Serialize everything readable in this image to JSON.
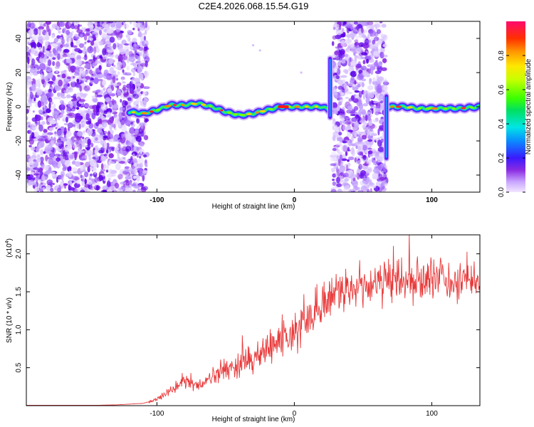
{
  "title": "C2E4.2026.068.15.54.G19",
  "colors": {
    "snr_line": "#e8393a",
    "blob_core": "#8a2be2",
    "blob_light": "#d9c2ff"
  },
  "chart_data": [
    {
      "type": "heatmap",
      "title": "C2E4.2026.068.15.54.G19",
      "xlabel": "Height of straight line (km)",
      "ylabel": "Frequency (Hz)",
      "xlim": [
        -195,
        135
      ],
      "ylim": [
        -50,
        50
      ],
      "xticks": [
        -100,
        0,
        100
      ],
      "xtick_labels": [
        "-100",
        "0",
        "100"
      ],
      "yticks": [
        -40,
        -20,
        0,
        20,
        40
      ],
      "ytick_labels": [
        "-40",
        "-20",
        "0",
        "20",
        "40"
      ],
      "noise_regions": [
        [
          -195,
          -107
        ],
        [
          28,
          67
        ]
      ],
      "signal_track": {
        "x": [
          -120,
          -110,
          -100,
          -90,
          -80,
          -70,
          -60,
          -50,
          -40,
          -30,
          -20,
          -10,
          0,
          10,
          20,
          26,
          68,
          80,
          90,
          100,
          110,
          120,
          135
        ],
        "frequency": [
          -3,
          -4,
          -2,
          1,
          1,
          2,
          0,
          -3,
          -5,
          -4,
          -2,
          0,
          0,
          0,
          0,
          -2,
          0,
          0,
          -1,
          -1,
          -1,
          -1,
          0
        ]
      },
      "spikes": [
        {
          "x": 26,
          "frequency_range": [
            -8,
            30
          ]
        },
        {
          "x": 67,
          "frequency_range": [
            -32,
            8
          ]
        }
      ],
      "colorbar": {
        "label": "Normalized spectral amplitude",
        "range": [
          0.0,
          1.0
        ],
        "ticks": [
          0.0,
          0.2,
          0.4,
          0.6,
          0.8
        ],
        "tick_labels": [
          "0.0",
          "0.2",
          "0.4",
          "0.6",
          "0.8"
        ]
      }
    },
    {
      "type": "line",
      "xlabel": "Height of straight line (km)",
      "ylabel": "SNR (10 * v/v)",
      "scale_label": "(x10",
      "scale_exp": "4",
      "xlim": [
        -195,
        135
      ],
      "ylim": [
        0,
        2.25
      ],
      "xticks": [
        -100,
        0,
        100
      ],
      "xtick_labels": [
        "-100",
        "0",
        "100"
      ],
      "yticks": [
        0.5,
        1.0,
        1.5,
        2.0
      ],
      "ytick_labels": [
        "0.5",
        "1.0",
        "1.5",
        "2.0"
      ],
      "series": [
        {
          "name": "SNR",
          "x": [
            -195,
            -160,
            -130,
            -110,
            -100,
            -95,
            -90,
            -85,
            -80,
            -75,
            -70,
            -65,
            -60,
            -55,
            -50,
            -45,
            -40,
            -35,
            -30,
            -25,
            -20,
            -15,
            -10,
            -5,
            0,
            5,
            10,
            15,
            20,
            25,
            30,
            40,
            50,
            60,
            70,
            80,
            90,
            100,
            110,
            120,
            135
          ],
          "values": [
            0.0,
            0.0,
            0.01,
            0.03,
            0.08,
            0.14,
            0.2,
            0.28,
            0.34,
            0.3,
            0.26,
            0.3,
            0.38,
            0.45,
            0.5,
            0.48,
            0.56,
            0.62,
            0.6,
            0.64,
            0.72,
            0.82,
            0.9,
            0.92,
            0.96,
            1.0,
            1.08,
            1.25,
            1.35,
            1.42,
            1.47,
            1.52,
            1.57,
            1.6,
            1.63,
            1.66,
            1.64,
            1.66,
            1.65,
            1.63,
            1.62
          ],
          "noise_amplitude": 0.35
        }
      ]
    }
  ]
}
